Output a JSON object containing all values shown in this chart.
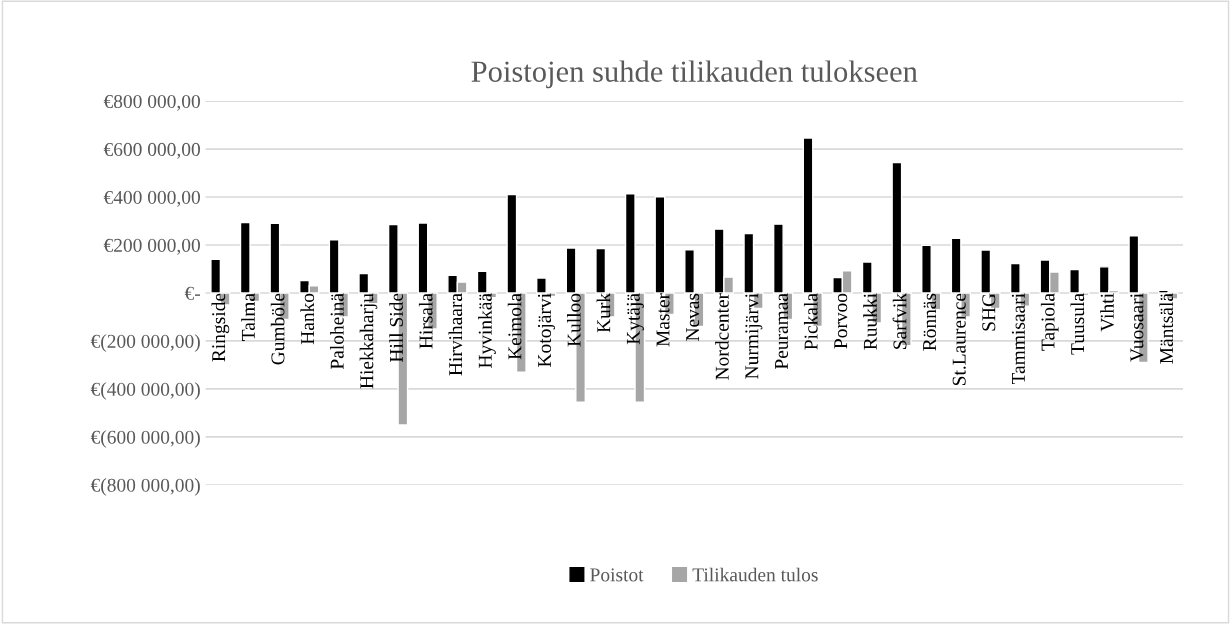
{
  "chart_data": {
    "type": "bar",
    "title": "Poistojen suhde tilikauden tulokseen",
    "categories": [
      "Ringside",
      "Talma",
      "Gumböle",
      "Hanko",
      "Paloheinä",
      "Hiekkaharju",
      "Hill Side",
      "Hirsala",
      "Hirvihaara",
      "Hyvinkää",
      "Keimola",
      "Kotojärvi",
      "Kulloo",
      "Kurk",
      "Kytäjä",
      "Master",
      "Nevas",
      "Nordcenter",
      "Nurmijärvi",
      "Peuramaa",
      "Pickala",
      "Porvoo",
      "Ruukki",
      "Sarfvik",
      "Rönnäs",
      "St.Laurence",
      "SHG",
      "Tammisaari",
      "Tapiola",
      "Tuusula",
      "Vihti",
      "Vuosaari",
      "Mäntsälä"
    ],
    "series": [
      {
        "name": "Poistot",
        "color": "#000000",
        "values": [
          140000,
          294000,
          290000,
          52000,
          222000,
          81000,
          285000,
          292000,
          74000,
          90000,
          410000,
          62000,
          187000,
          185000,
          413000,
          401000,
          180000,
          266000,
          248000,
          287000,
          646000,
          64000,
          129000,
          544000,
          199000,
          228000,
          179000,
          123000,
          137000,
          98000,
          109000,
          238000,
          11000
        ]
      },
      {
        "name": "Tilikauden tulos",
        "color": "#a6a6a6",
        "values": [
          -50000,
          -35000,
          -110000,
          30000,
          -100000,
          -45000,
          -550000,
          -150000,
          45000,
          -20000,
          -330000,
          -15000,
          -455000,
          -100000,
          -455000,
          -90000,
          -140000,
          66000,
          -65000,
          -110000,
          -140000,
          92000,
          -125000,
          -220000,
          -70000,
          -100000,
          -65000,
          -55000,
          87000,
          -10000,
          10000,
          -290000,
          -25000
        ]
      }
    ],
    "ylim": [
      -800000,
      800000
    ],
    "yticks": [
      {
        "value": 800000,
        "label": "€800 000,00"
      },
      {
        "value": 600000,
        "label": "€600 000,00"
      },
      {
        "value": 400000,
        "label": "€400 000,00"
      },
      {
        "value": 200000,
        "label": "€200 000,00"
      },
      {
        "value": 0,
        "label": "€-"
      },
      {
        "value": -200000,
        "label": "€(200 000,00)"
      },
      {
        "value": -400000,
        "label": "€(400 000,00)"
      },
      {
        "value": -600000,
        "label": "€(600 000,00)"
      },
      {
        "value": -800000,
        "label": "€(800 000,00)"
      }
    ],
    "grid": "y",
    "legend": "bottom"
  }
}
